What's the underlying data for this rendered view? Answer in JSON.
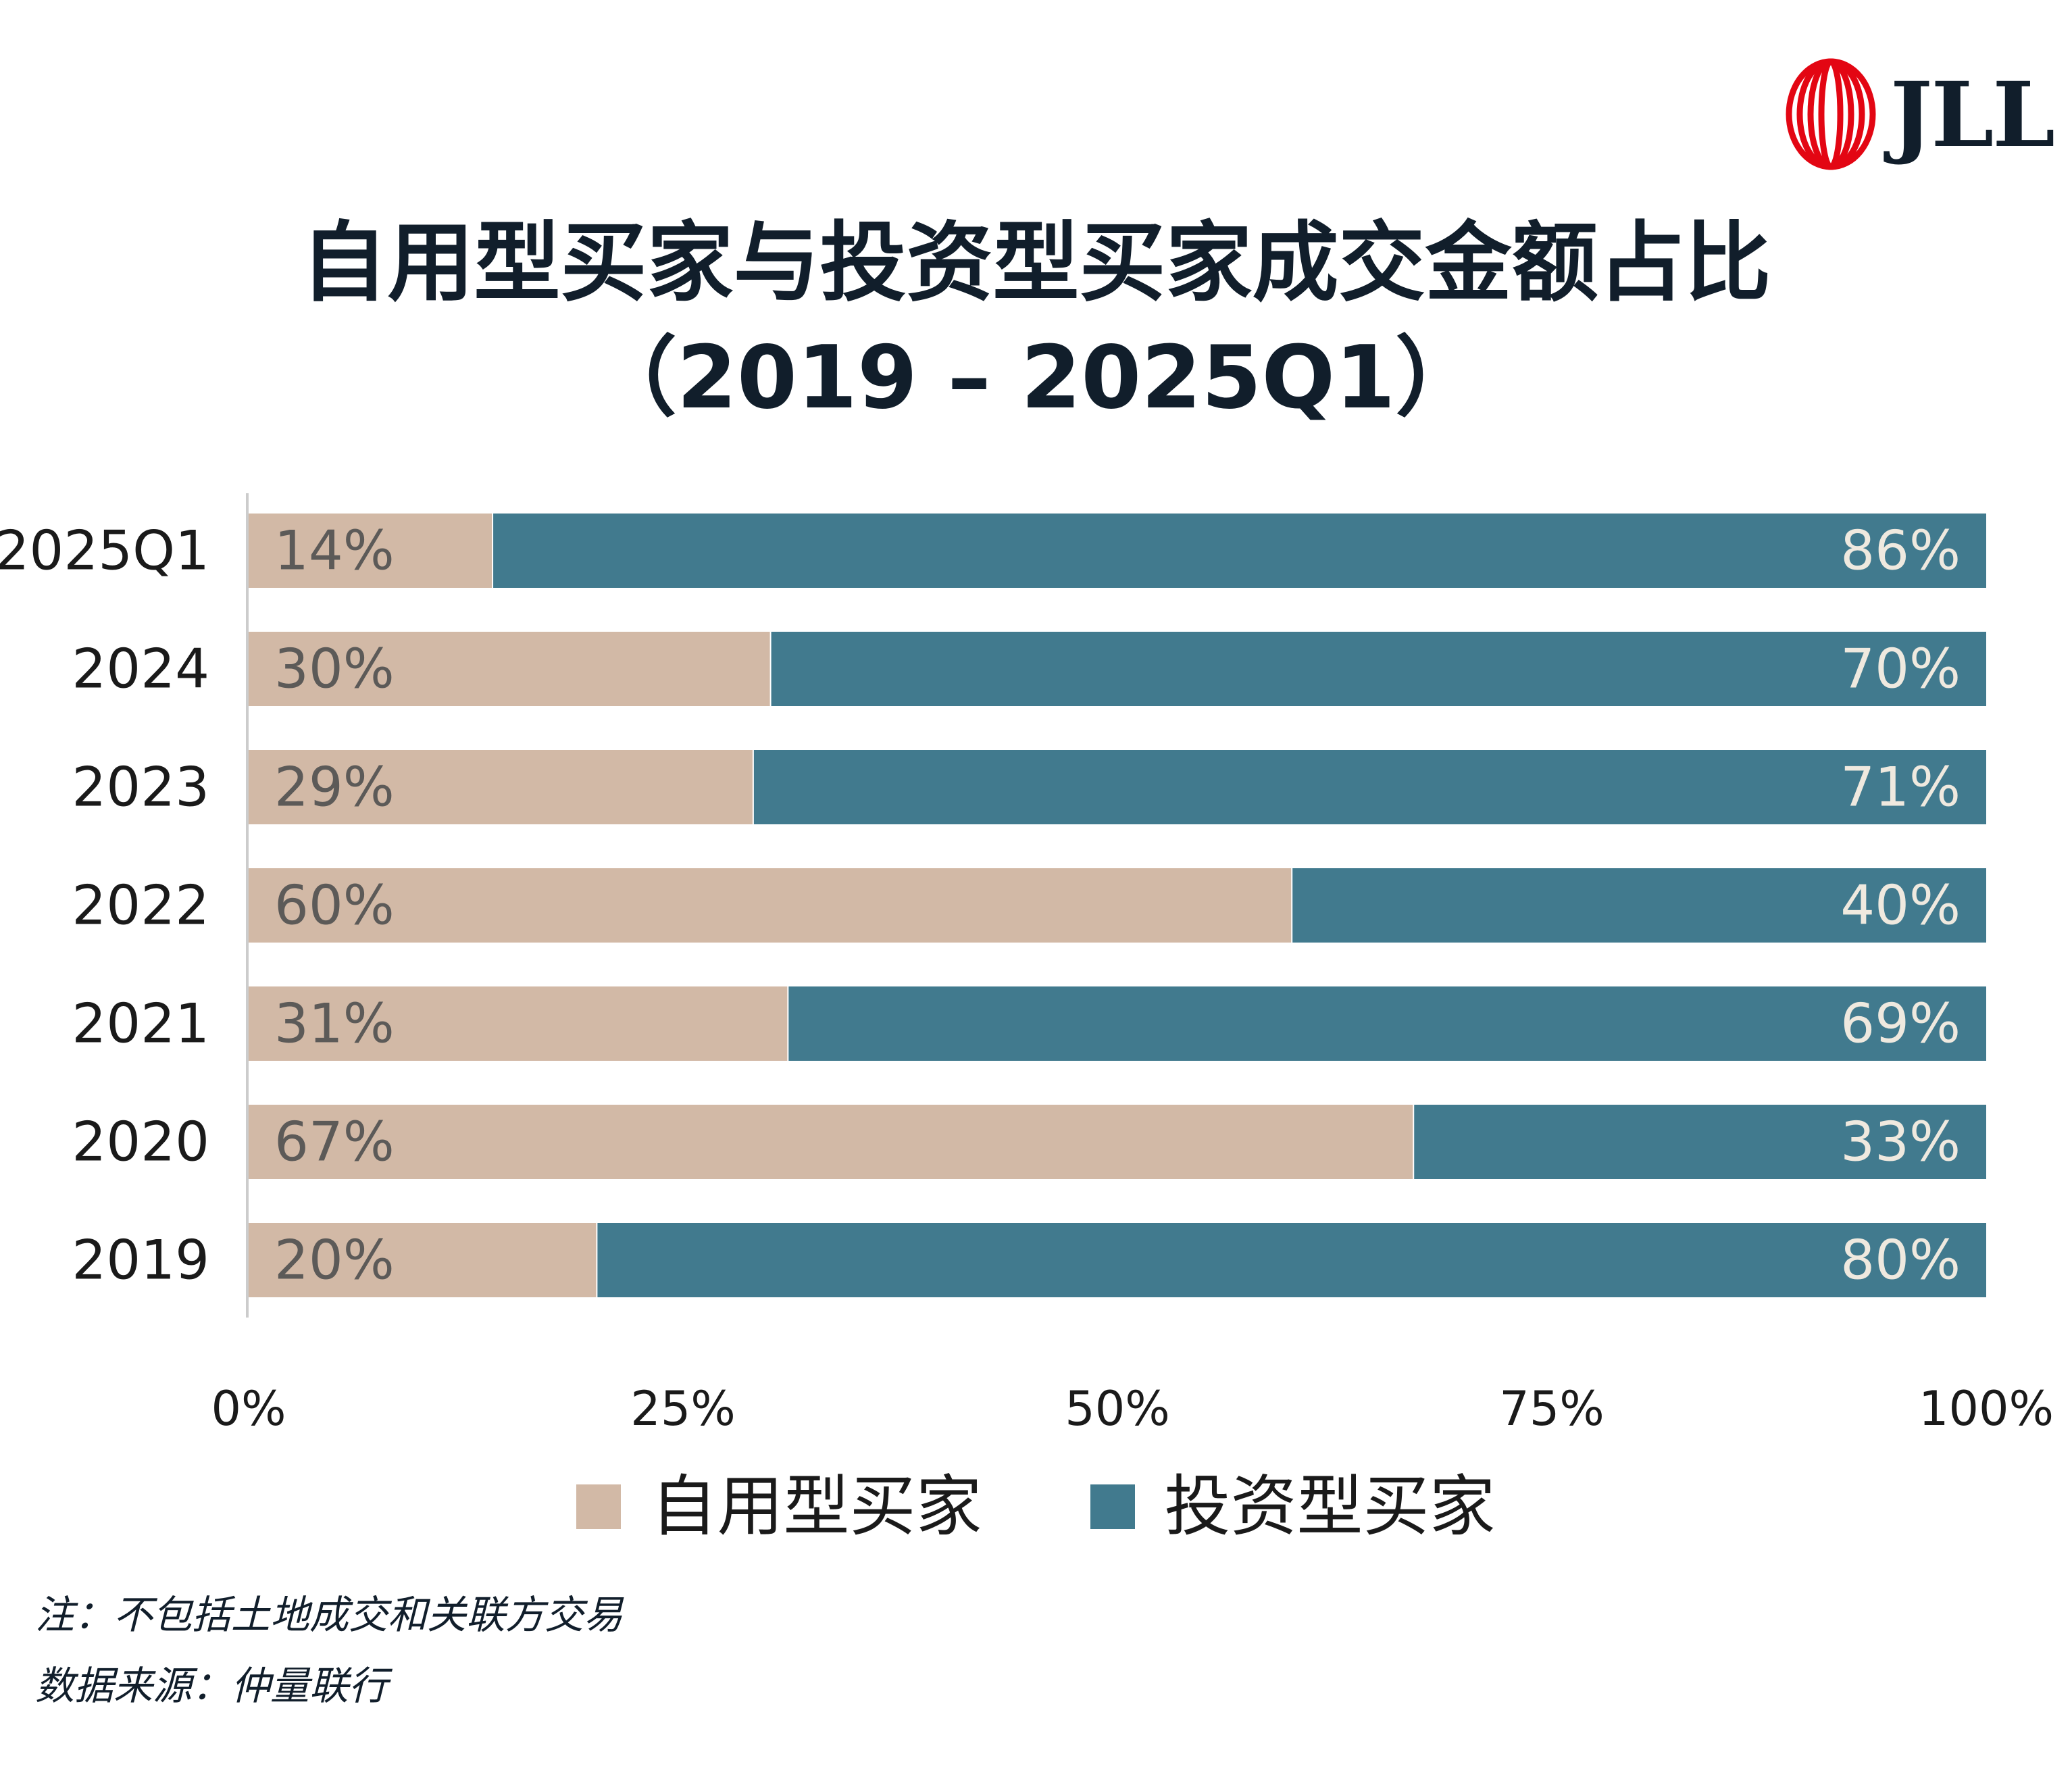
{
  "brand": {
    "name": "JLL",
    "logo_color": "#e30613"
  },
  "title": {
    "line1": "自用型买家与投资型买家成交金额占比",
    "line2": "（2019 – 2025Q1）"
  },
  "colors": {
    "owner_occupier": "#d2b9a6",
    "investor": "#417a8e",
    "owner_label_text": "#5c5a58",
    "investor_label_text": "#efe9df",
    "axis": "#cccccc",
    "text": "#111e2b"
  },
  "chart_data": {
    "type": "bar",
    "orientation": "horizontal",
    "stacked": true,
    "categories": [
      "2025Q1",
      "2024",
      "2023",
      "2022",
      "2021",
      "2020",
      "2019"
    ],
    "series": [
      {
        "name": "自用型买家",
        "values": [
          14,
          30,
          29,
          60,
          31,
          67,
          20
        ],
        "labels": [
          "14%",
          "30%",
          "29%",
          "60%",
          "31%",
          "67%",
          "20%"
        ]
      },
      {
        "name": "投资型买家",
        "values": [
          86,
          70,
          71,
          40,
          69,
          33,
          80
        ],
        "labels": [
          "86%",
          "70%",
          "71%",
          "40%",
          "69%",
          "33%",
          "80%"
        ]
      }
    ],
    "xlim": [
      0,
      100
    ],
    "xticks": [
      "0%",
      "25%",
      "50%",
      "75%",
      "100%"
    ],
    "xtick_values": [
      0,
      25,
      50,
      75,
      100
    ],
    "grid": false,
    "legend_position": "bottom"
  },
  "footnotes": {
    "note": "注：不包括土地成交和关联方交易",
    "source": "数据来源：仲量联行"
  }
}
